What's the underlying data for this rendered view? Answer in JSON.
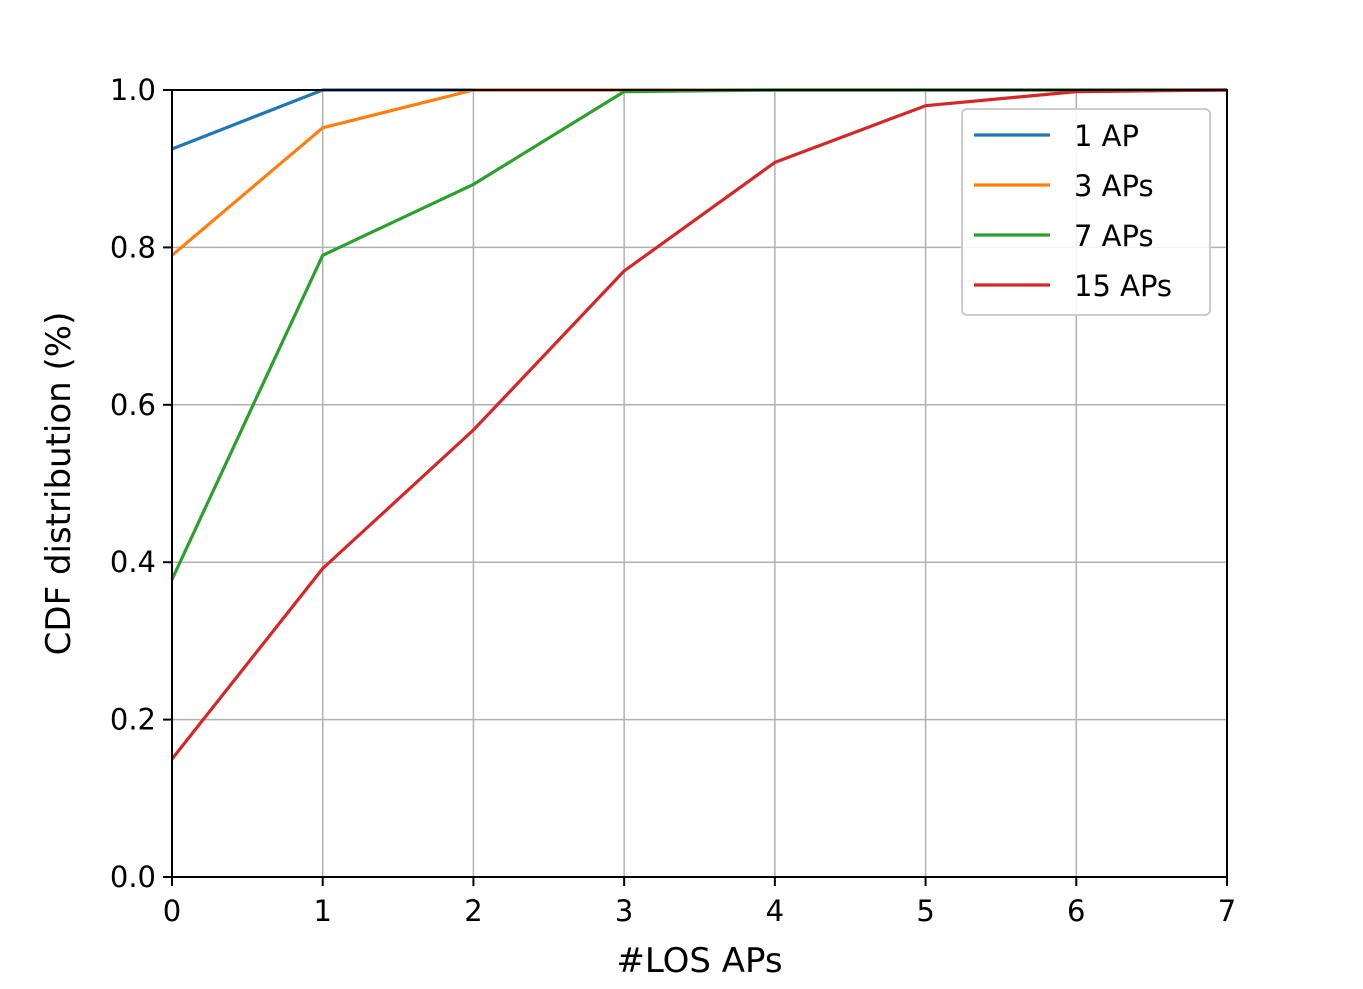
{
  "chart_data": {
    "type": "line",
    "title": "",
    "xlabel": "#LOS APs",
    "ylabel": "CDF distribution (%)",
    "xlim": [
      0,
      7
    ],
    "ylim": [
      0.0,
      1.0
    ],
    "xticks": [
      "0",
      "1",
      "2",
      "3",
      "4",
      "5",
      "6",
      "7"
    ],
    "yticks": [
      "0.0",
      "0.2",
      "0.4",
      "0.6",
      "0.8",
      "1.0"
    ],
    "grid": true,
    "legend_position": "top-right",
    "series": [
      {
        "name": "1 AP",
        "color": "#1f77b4",
        "x": [
          0,
          1,
          2,
          3,
          4,
          5,
          6,
          7
        ],
        "y": [
          0.925,
          1.0,
          1.0,
          1.0,
          1.0,
          1.0,
          1.0,
          1.0
        ]
      },
      {
        "name": "3 APs",
        "color": "#ff7f0e",
        "x": [
          0,
          1,
          2,
          3,
          4,
          5,
          6,
          7
        ],
        "y": [
          0.79,
          0.952,
          1.0,
          1.0,
          1.0,
          1.0,
          1.0,
          1.0
        ]
      },
      {
        "name": "7 APs",
        "color": "#2ca02c",
        "x": [
          0,
          1,
          2,
          3,
          4,
          5,
          6,
          7
        ],
        "y": [
          0.378,
          0.79,
          0.88,
          0.998,
          1.0,
          1.0,
          1.0,
          1.0
        ]
      },
      {
        "name": "15 APs",
        "color": "#d62728",
        "x": [
          0,
          1,
          2,
          3,
          4,
          5,
          6,
          7
        ],
        "y": [
          0.15,
          0.392,
          0.568,
          0.77,
          0.908,
          0.98,
          0.998,
          1.0
        ]
      }
    ]
  }
}
